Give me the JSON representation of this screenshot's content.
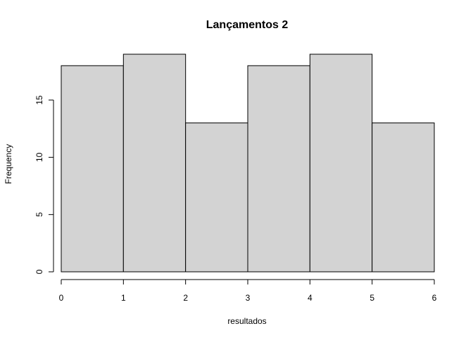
{
  "chart_data": {
    "type": "bar",
    "title": "Lançamentos 2",
    "xlabel": "resultados",
    "ylabel": "Frequency",
    "bins": [
      [
        0,
        1
      ],
      [
        1,
        2
      ],
      [
        2,
        3
      ],
      [
        3,
        4
      ],
      [
        4,
        5
      ],
      [
        5,
        6
      ]
    ],
    "values": [
      18,
      19,
      13,
      18,
      19,
      13
    ],
    "xlim": [
      0,
      6
    ],
    "ylim": [
      0,
      19
    ],
    "x_ticks": [
      0,
      1,
      2,
      3,
      4,
      5,
      6
    ],
    "y_ticks": [
      0,
      5,
      10,
      15
    ],
    "bar_color": "#d3d3d3",
    "grid": false
  }
}
